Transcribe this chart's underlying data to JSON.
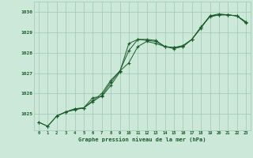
{
  "bg_color": "#cce8d8",
  "grid_color": "#a0c8b0",
  "line_color": "#1a5c2a",
  "marker_color": "#1a5c2a",
  "xlabel": "Graphe pression niveau de la mer (hPa)",
  "xlabel_color": "#1a5c2a",
  "ylabel_ticks": [
    1025,
    1026,
    1027,
    1028,
    1029,
    1030
  ],
  "xlim": [
    -0.5,
    23.5
  ],
  "ylim": [
    1024.2,
    1030.5
  ],
  "line1_x": [
    0,
    1,
    2,
    3,
    4,
    5,
    6,
    7,
    8,
    9,
    10,
    11,
    12,
    13,
    14,
    15,
    16,
    17,
    18,
    19,
    20,
    21,
    22,
    23
  ],
  "line1_y": [
    1024.6,
    1024.4,
    1024.9,
    1025.1,
    1025.2,
    1025.3,
    1025.8,
    1025.85,
    1026.4,
    1027.05,
    1028.45,
    1028.65,
    1028.6,
    1028.55,
    1028.3,
    1028.25,
    1028.3,
    1028.65,
    1029.2,
    1029.8,
    1029.85,
    1029.85,
    1029.8,
    1029.5
  ],
  "line2_x": [
    0,
    1,
    2,
    3,
    4,
    5,
    6,
    7,
    8,
    9,
    10,
    11,
    12,
    13,
    14,
    15,
    16,
    17,
    18,
    19,
    20,
    21,
    22,
    23
  ],
  "line2_y": [
    1024.6,
    1024.4,
    1024.9,
    1025.1,
    1025.25,
    1025.3,
    1025.6,
    1025.9,
    1026.55,
    1027.1,
    1027.5,
    1028.3,
    1028.55,
    1028.45,
    1028.3,
    1028.2,
    1028.3,
    1028.65,
    1029.25,
    1029.75,
    1029.85,
    1029.85,
    1029.8,
    1029.5
  ],
  "line3_x": [
    2,
    3,
    4,
    5,
    6,
    7,
    8,
    9,
    10,
    11,
    12,
    13,
    14,
    15,
    16,
    17,
    18,
    19,
    20,
    21,
    22,
    23
  ],
  "line3_y": [
    1024.9,
    1025.1,
    1025.25,
    1025.3,
    1025.65,
    1026.0,
    1026.65,
    1027.1,
    1028.1,
    1028.65,
    1028.65,
    1028.6,
    1028.3,
    1028.25,
    1028.35,
    1028.65,
    1029.25,
    1029.8,
    1029.9,
    1029.85,
    1029.8,
    1029.45
  ],
  "xtick_labels": [
    "0",
    "1",
    "2",
    "3",
    "4",
    "5",
    "6",
    "7",
    "8",
    "9",
    "10",
    "11",
    "12",
    "13",
    "14",
    "15",
    "16",
    "17",
    "18",
    "19",
    "20",
    "21",
    "22",
    "23"
  ],
  "figsize": [
    3.2,
    2.0
  ],
  "dpi": 100
}
